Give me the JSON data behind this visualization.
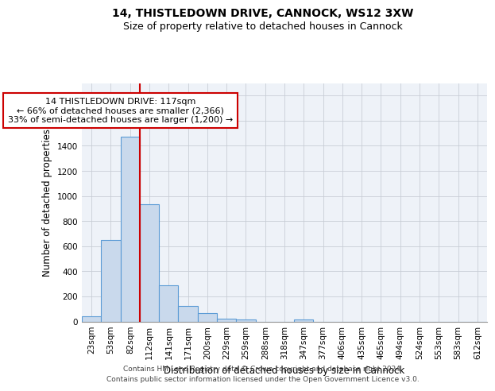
{
  "title_line1": "14, THISTLEDOWN DRIVE, CANNOCK, WS12 3XW",
  "title_line2": "Size of property relative to detached houses in Cannock",
  "xlabel": "Distribution of detached houses by size in Cannock",
  "ylabel": "Number of detached properties",
  "bar_color": "#c9d9ec",
  "bar_edge_color": "#5b9bd5",
  "categories": [
    "23sqm",
    "53sqm",
    "82sqm",
    "112sqm",
    "141sqm",
    "171sqm",
    "200sqm",
    "229sqm",
    "259sqm",
    "288sqm",
    "318sqm",
    "347sqm",
    "377sqm",
    "406sqm",
    "435sqm",
    "465sqm",
    "494sqm",
    "524sqm",
    "553sqm",
    "583sqm",
    "612sqm"
  ],
  "values": [
    40,
    650,
    1470,
    935,
    290,
    125,
    65,
    25,
    15,
    0,
    0,
    15,
    0,
    0,
    0,
    0,
    0,
    0,
    0,
    0,
    0
  ],
  "ylim": [
    0,
    1900
  ],
  "yticks": [
    0,
    200,
    400,
    600,
    800,
    1000,
    1200,
    1400,
    1600,
    1800
  ],
  "vline_index": 3,
  "vline_color": "#cc0000",
  "annotation_line1": "14 THISTLEDOWN DRIVE: 117sqm",
  "annotation_line2": "← 66% of detached houses are smaller (2,366)",
  "annotation_line3": "33% of semi-detached houses are larger (1,200) →",
  "annotation_box_color": "#ffffff",
  "annotation_box_edge": "#cc0000",
  "footer_line1": "Contains HM Land Registry data © Crown copyright and database right 2024.",
  "footer_line2": "Contains public sector information licensed under the Open Government Licence v3.0.",
  "bg_color": "#eef2f8",
  "grid_color": "#c8cdd6",
  "title_fontsize": 10,
  "subtitle_fontsize": 9,
  "axis_label_fontsize": 8.5,
  "tick_fontsize": 7.5,
  "annotation_fontsize": 8,
  "footer_fontsize": 6.5
}
